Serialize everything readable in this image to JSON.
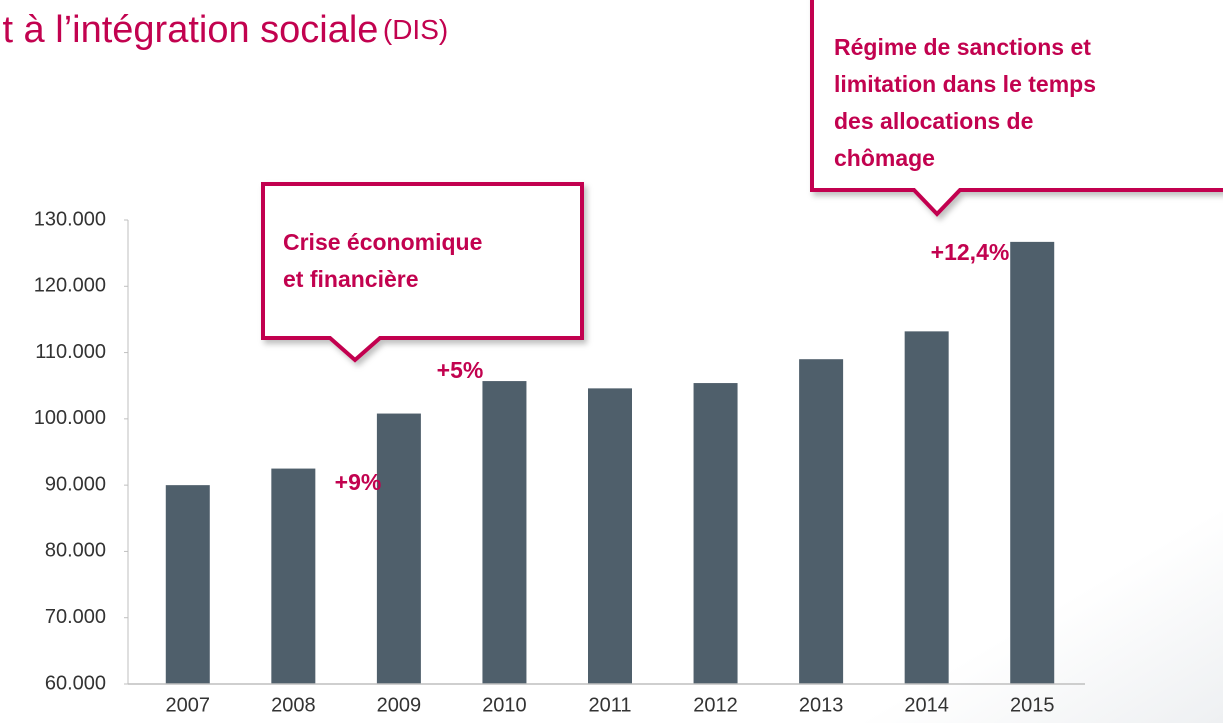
{
  "chart_data": {
    "type": "bar",
    "title": "it à l’intégration sociale",
    "title_abbr": "(DIS)",
    "categories": [
      "2007",
      "2008",
      "2009",
      "2010",
      "2011",
      "2012",
      "2013",
      "2014",
      "2015"
    ],
    "values": [
      90000,
      92500,
      100800,
      105700,
      104600,
      105400,
      109000,
      113200,
      126700
    ],
    "color": "#4f5f6b",
    "ylim": [
      60000,
      130000
    ],
    "yticks": [
      {
        "value": 60000,
        "label": "60.000"
      },
      {
        "value": 70000,
        "label": "70.000"
      },
      {
        "value": 80000,
        "label": "80.000"
      },
      {
        "value": 90000,
        "label": "90.000"
      },
      {
        "value": 100000,
        "label": "100.000"
      },
      {
        "value": 110000,
        "label": "110.000"
      },
      {
        "value": 120000,
        "label": "120.000"
      },
      {
        "value": 130000,
        "label": "130.000"
      }
    ],
    "grid": false,
    "annotations": [
      "+9%",
      "+5%",
      "+12,4%"
    ],
    "callouts": [
      [
        "Crise économique",
        "et financière"
      ],
      [
        "Régime de sanctions et",
        "limitation dans le temps",
        "des allocations de",
        "chômage"
      ]
    ]
  }
}
